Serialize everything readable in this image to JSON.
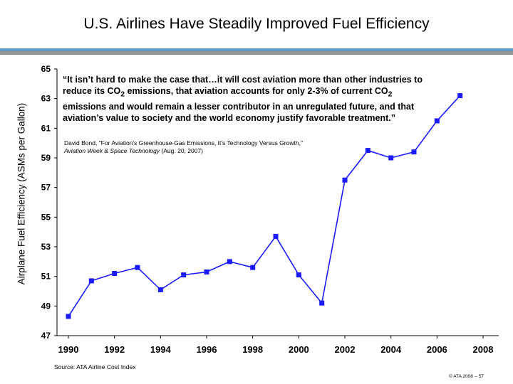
{
  "chart_data": {
    "type": "line",
    "title": "U.S. Airlines Have Steadily Improved Fuel Efficiency",
    "ylabel": "Airplane Fuel Efficiency (ASMs per Gallon)",
    "xlabel": "",
    "ylim": [
      47,
      65
    ],
    "xlim": [
      1990,
      2008
    ],
    "yticks": [
      47,
      49,
      51,
      53,
      55,
      57,
      59,
      61,
      63,
      65
    ],
    "xticks": [
      1990,
      1992,
      1994,
      1996,
      1998,
      2000,
      2002,
      2004,
      2006,
      2008
    ],
    "grid": false,
    "series_color": "#1a1aff",
    "x": [
      1990,
      1991,
      1992,
      1993,
      1994,
      1995,
      1996,
      1997,
      1998,
      1999,
      2000,
      2001,
      2002,
      2003,
      2004,
      2005,
      2006,
      2007
    ],
    "values": [
      48.3,
      50.7,
      51.2,
      51.6,
      50.1,
      51.1,
      51.3,
      52.0,
      51.6,
      53.7,
      51.1,
      49.2,
      57.5,
      59.5,
      59.0,
      59.4,
      61.5,
      63.2
    ]
  },
  "quote": {
    "text_before": "“It isn’t hard to make the case that…it will cost aviation more than other industries to reduce its CO",
    "sub1": "2",
    "text_mid": " emissions, that aviation accounts for only 2-3% of current CO",
    "sub2": "2",
    "text_after": " emissions and would remain a lesser contributor in an unregulated future, and that aviation’s value to society and the world economy justify favorable treatment.”"
  },
  "citation": {
    "line1": "David Bond, \"For Aviation's Greenhouse-Gas Emissions, It's Technology Versus Growth,\"",
    "journal": "Aviation Week & Space Technology",
    "date": " (Aug. 20, 2007)"
  },
  "source": "Source: ATA Airline Cost Index",
  "copyright": "© ATA 2008 -- 57"
}
